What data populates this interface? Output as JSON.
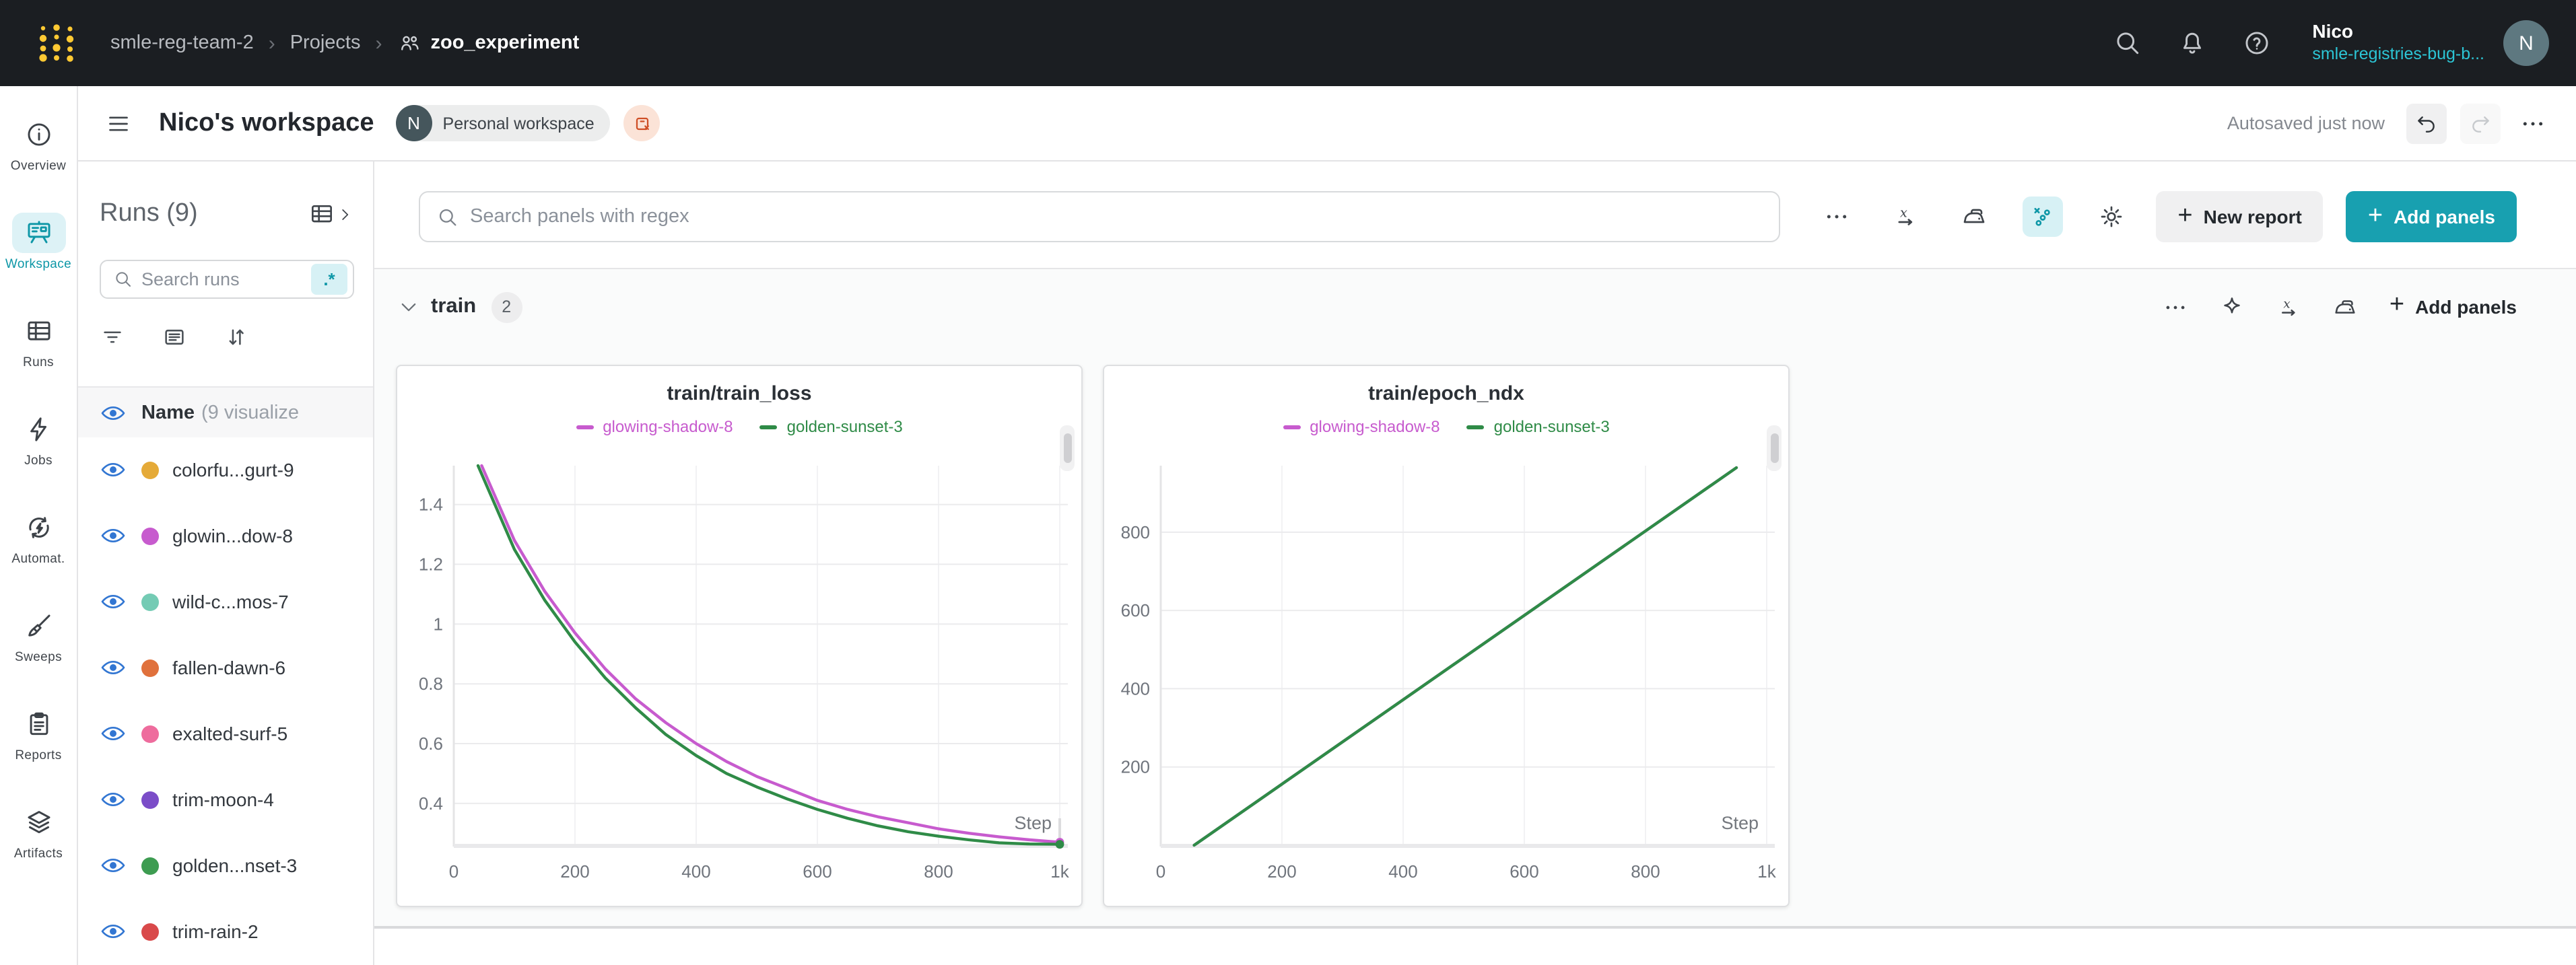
{
  "colors": {
    "topnav_bg": "#1b1e22",
    "accent_teal": "#18a0b0",
    "accent_teal_dark": "#0e97a7",
    "teal_highlight_bg": "#d7f1f5",
    "link_teal": "#2cc5d5",
    "eye_blue": "#3276d2",
    "logo_gold": "#ffc933",
    "run_magenta": "#c75bce",
    "run_green": "#2f8b47"
  },
  "topnav": {
    "breadcrumb": {
      "team": "smle-reg-team-2",
      "section": "Projects",
      "project": "zoo_experiment",
      "separator": "›"
    },
    "icons": [
      "search-icon",
      "bell-icon",
      "help-icon"
    ],
    "user": {
      "name": "Nico",
      "org": "smle-registries-bug-b...",
      "avatar_initial": "N"
    }
  },
  "workspace_header": {
    "title": "Nico's workspace",
    "avatar_initial": "N",
    "badge": "Personal workspace",
    "autosaved": "Autosaved just now"
  },
  "rail": {
    "items": [
      {
        "label": "Overview",
        "icon": "info",
        "active": false
      },
      {
        "label": "Workspace",
        "icon": "workspace",
        "active": true
      },
      {
        "label": "Runs",
        "icon": "table",
        "active": false
      },
      {
        "label": "Jobs",
        "icon": "bolt",
        "active": false
      },
      {
        "label": "Automat.",
        "icon": "automations",
        "active": false
      },
      {
        "label": "Sweeps",
        "icon": "broom",
        "active": false
      },
      {
        "label": "Reports",
        "icon": "document",
        "active": false
      },
      {
        "label": "Artifacts",
        "icon": "layers",
        "active": false
      }
    ]
  },
  "runs_panel": {
    "title": "Runs (9)",
    "search_placeholder": "Search runs",
    "regex_toggle": ".*",
    "columns": {
      "name": "Name",
      "suffix": "(9 visualize"
    },
    "runs": [
      {
        "name": "colorfu...gurt-9",
        "color": "#e5aa38"
      },
      {
        "name": "glowin...dow-8",
        "color": "#c75bce"
      },
      {
        "name": "wild-c...mos-7",
        "color": "#74cbb4"
      },
      {
        "name": "fallen-dawn-6",
        "color": "#e0713c"
      },
      {
        "name": "exalted-surf-5",
        "color": "#ee6c9d"
      },
      {
        "name": "trim-moon-4",
        "color": "#7b4dc8"
      },
      {
        "name": "golden...nset-3",
        "color": "#3d9c51"
      },
      {
        "name": "trim-rain-2",
        "color": "#d9494a"
      }
    ]
  },
  "toolbar": {
    "search_placeholder": "Search panels with regex",
    "new_report": "New report",
    "add_panels": "Add panels"
  },
  "section": {
    "name": "train",
    "count": "2",
    "add_panels": "Add panels"
  },
  "chart_data": [
    {
      "type": "line",
      "title": "train/train_loss",
      "xlabel": "Step",
      "xlim": [
        0,
        1000
      ],
      "ylim": [
        0.26,
        1.53
      ],
      "xticks": [
        {
          "v": 0,
          "label": "0"
        },
        {
          "v": 200,
          "label": "200"
        },
        {
          "v": 400,
          "label": "400"
        },
        {
          "v": 600,
          "label": "600"
        },
        {
          "v": 800,
          "label": "800"
        },
        {
          "v": 1000,
          "label": "1k"
        }
      ],
      "yticks": [
        {
          "v": 0.4,
          "label": "0.4"
        },
        {
          "v": 0.6,
          "label": "0.6"
        },
        {
          "v": 0.8,
          "label": "0.8"
        },
        {
          "v": 1,
          "label": "1"
        },
        {
          "v": 1.2,
          "label": "1.2"
        },
        {
          "v": 1.4,
          "label": "1.4"
        }
      ],
      "legend": [
        {
          "name": "glowing-shadow-8",
          "color": "#c75bce"
        },
        {
          "name": "golden-sunset-3",
          "color": "#2f8b47"
        }
      ],
      "grid": true,
      "legend_position": "top",
      "end_markers": true,
      "series": [
        {
          "name": "glowing-shadow-8",
          "color": "#c75bce",
          "points": [
            [
              46,
              1.53
            ],
            [
              100,
              1.28
            ],
            [
              150,
              1.11
            ],
            [
              200,
              0.97
            ],
            [
              250,
              0.85
            ],
            [
              300,
              0.75
            ],
            [
              350,
              0.67
            ],
            [
              400,
              0.6
            ],
            [
              450,
              0.54
            ],
            [
              500,
              0.49
            ],
            [
              550,
              0.45
            ],
            [
              600,
              0.41
            ],
            [
              650,
              0.38
            ],
            [
              700,
              0.355
            ],
            [
              750,
              0.335
            ],
            [
              800,
              0.315
            ],
            [
              850,
              0.3
            ],
            [
              900,
              0.288
            ],
            [
              950,
              0.278
            ],
            [
              1000,
              0.27
            ]
          ]
        },
        {
          "name": "golden-sunset-3",
          "color": "#2f8b47",
          "points": [
            [
              40,
              1.53
            ],
            [
              100,
              1.25
            ],
            [
              150,
              1.08
            ],
            [
              200,
              0.94
            ],
            [
              250,
              0.82
            ],
            [
              300,
              0.72
            ],
            [
              350,
              0.63
            ],
            [
              400,
              0.56
            ],
            [
              450,
              0.5
            ],
            [
              500,
              0.455
            ],
            [
              550,
              0.415
            ],
            [
              600,
              0.38
            ],
            [
              650,
              0.35
            ],
            [
              700,
              0.325
            ],
            [
              750,
              0.305
            ],
            [
              800,
              0.29
            ],
            [
              850,
              0.278
            ],
            [
              900,
              0.268
            ],
            [
              950,
              0.264
            ],
            [
              1000,
              0.263
            ]
          ]
        }
      ]
    },
    {
      "type": "line",
      "title": "train/epoch_ndx",
      "xlabel": "Step",
      "xlim": [
        0,
        1000
      ],
      "ylim": [
        0,
        970
      ],
      "xticks": [
        {
          "v": 0,
          "label": "0"
        },
        {
          "v": 200,
          "label": "200"
        },
        {
          "v": 400,
          "label": "400"
        },
        {
          "v": 600,
          "label": "600"
        },
        {
          "v": 800,
          "label": "800"
        },
        {
          "v": 1000,
          "label": "1k"
        }
      ],
      "yticks": [
        {
          "v": 200,
          "label": "200"
        },
        {
          "v": 400,
          "label": "400"
        },
        {
          "v": 600,
          "label": "600"
        },
        {
          "v": 800,
          "label": "800"
        }
      ],
      "legend": [
        {
          "name": "glowing-shadow-8",
          "color": "#c75bce"
        },
        {
          "name": "golden-sunset-3",
          "color": "#2f8b47"
        }
      ],
      "grid": true,
      "legend_position": "top",
      "end_markers": false,
      "series": [
        {
          "name": "glowing-shadow-8",
          "color": "#c75bce",
          "points": [
            [
              55,
              0
            ],
            [
              950,
              965
            ]
          ]
        },
        {
          "name": "golden-sunset-3",
          "color": "#2f8b47",
          "points": [
            [
              55,
              0
            ],
            [
              950,
              965
            ]
          ]
        }
      ]
    }
  ]
}
